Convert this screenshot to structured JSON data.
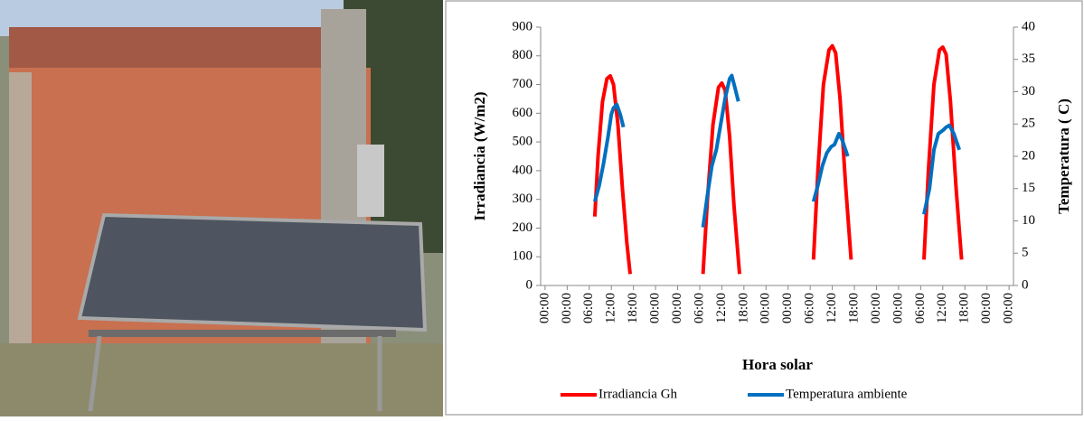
{
  "chart_data": {
    "type": "line",
    "x_label": "Hora solar",
    "y_label": "Irradiancia (W/m2)",
    "y2_label": "Temperatura ( C)",
    "xlim": [
      -0.2,
      21.2
    ],
    "xticks": [
      {
        "value": 0,
        "label": "00:00"
      },
      {
        "value": 1,
        "label": "00:00"
      },
      {
        "value": 2,
        "label": "06:00"
      },
      {
        "value": 3,
        "label": "12:00"
      },
      {
        "value": 4,
        "label": "18:00"
      },
      {
        "value": 5,
        "label": "00:00"
      },
      {
        "value": 6,
        "label": "00:00"
      },
      {
        "value": 7,
        "label": "06:00"
      },
      {
        "value": 8,
        "label": "12:00"
      },
      {
        "value": 9,
        "label": "18:00"
      },
      {
        "value": 10,
        "label": "00:00"
      },
      {
        "value": 11,
        "label": "00:00"
      },
      {
        "value": 12,
        "label": "06:00"
      },
      {
        "value": 13,
        "label": "12:00"
      },
      {
        "value": 14,
        "label": "18:00"
      },
      {
        "value": 15,
        "label": "00:00"
      },
      {
        "value": 16,
        "label": "00:00"
      },
      {
        "value": 17,
        "label": "06:00"
      },
      {
        "value": 18,
        "label": "12:00"
      },
      {
        "value": 19,
        "label": "18:00"
      },
      {
        "value": 20,
        "label": "00:00"
      },
      {
        "value": 21,
        "label": "00:00"
      }
    ],
    "ylim": [
      0,
      900
    ],
    "yticks": [
      0,
      100,
      200,
      300,
      400,
      500,
      600,
      700,
      800,
      900
    ],
    "y2lim": [
      0,
      40
    ],
    "y2ticks": [
      0,
      5,
      10,
      15,
      20,
      25,
      30,
      35,
      40
    ],
    "legend": "bottom",
    "series": [
      {
        "name": "Irradiancia Gh",
        "color": "#ff0000",
        "x": [
          2.25,
          2.4,
          2.6,
          2.8,
          2.95,
          3.1,
          3.3,
          3.5,
          3.7,
          3.85,
          null,
          7.15,
          7.35,
          7.6,
          7.85,
          8.0,
          8.15,
          8.35,
          8.55,
          8.8,
          null,
          12.15,
          12.35,
          12.6,
          12.85,
          13.0,
          13.15,
          13.35,
          13.6,
          13.85,
          null,
          17.15,
          17.35,
          17.6,
          17.85,
          18.0,
          18.15,
          18.35,
          18.6,
          18.85
        ],
        "values": [
          240,
          450,
          640,
          720,
          730,
          700,
          560,
          340,
          150,
          40,
          null,
          40,
          300,
          560,
          690,
          705,
          680,
          520,
          280,
          40,
          null,
          90,
          400,
          700,
          820,
          835,
          810,
          650,
          350,
          90,
          null,
          90,
          400,
          700,
          820,
          830,
          805,
          640,
          340,
          90
        ]
      },
      {
        "name": "Temperatura ambiente",
        "color": "#0070c0",
        "axis": "y2",
        "x": [
          2.25,
          2.45,
          2.65,
          2.85,
          3.0,
          3.1,
          3.25,
          3.4,
          3.55,
          null,
          7.15,
          7.35,
          7.55,
          7.75,
          7.95,
          8.15,
          8.35,
          8.45,
          8.6,
          8.75,
          null,
          12.15,
          12.35,
          12.55,
          12.75,
          12.95,
          13.1,
          13.3,
          13.45,
          13.7,
          null,
          17.15,
          17.4,
          17.6,
          17.8,
          18.0,
          18.15,
          18.3,
          18.5,
          18.75
        ],
        "values": [
          13,
          15.5,
          19,
          23,
          26.5,
          27.5,
          28,
          26.5,
          24.5,
          null,
          9,
          14,
          18.5,
          21,
          25,
          29,
          32,
          32.5,
          30.5,
          28.5,
          null,
          13,
          15.5,
          18.5,
          20.5,
          21.5,
          21.8,
          23.5,
          22.5,
          20,
          null,
          11,
          15,
          21,
          23.5,
          24,
          24.5,
          24.8,
          23.5,
          21
        ]
      }
    ]
  }
}
